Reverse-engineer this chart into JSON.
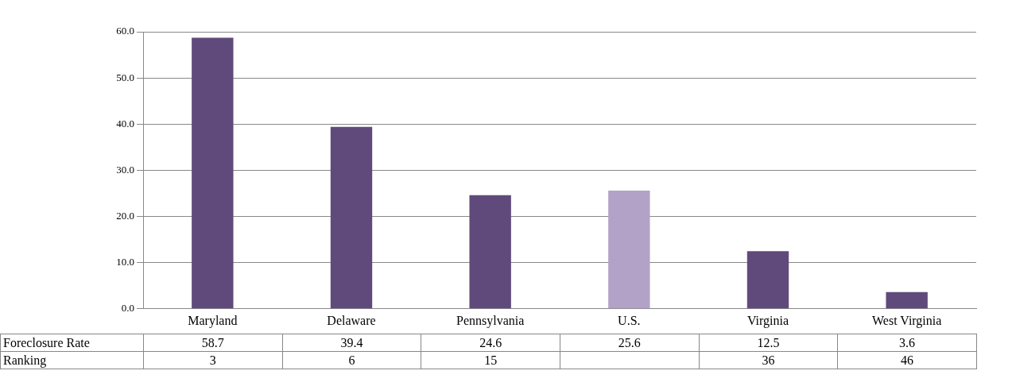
{
  "chart_data": {
    "type": "bar",
    "categories": [
      "Maryland",
      "Delaware",
      "Pennsylvania",
      "U.S.",
      "Virginia",
      "West Virginia"
    ],
    "series": [
      {
        "name": "Foreclosure Rate",
        "values": [
          58.7,
          39.4,
          24.6,
          25.6,
          12.5,
          3.6
        ],
        "colors": [
          "#604a7b",
          "#604a7b",
          "#604a7b",
          "#b3a2c7",
          "#604a7b",
          "#604a7b"
        ]
      }
    ],
    "ylim": [
      0,
      60
    ],
    "yticks": [
      {
        "value": 0,
        "label": "0.0"
      },
      {
        "value": 10,
        "label": "10.0"
      },
      {
        "value": 20,
        "label": "20.0"
      },
      {
        "value": 30,
        "label": "30.0"
      },
      {
        "value": 40,
        "label": "40.0"
      },
      {
        "value": 50,
        "label": "50.0"
      },
      {
        "value": 60,
        "label": "60.0"
      }
    ],
    "grid": "y",
    "data_labels": true,
    "annotations": [
      "Ranking",
      "3",
      "6",
      "15",
      "36",
      "46"
    ]
  }
}
